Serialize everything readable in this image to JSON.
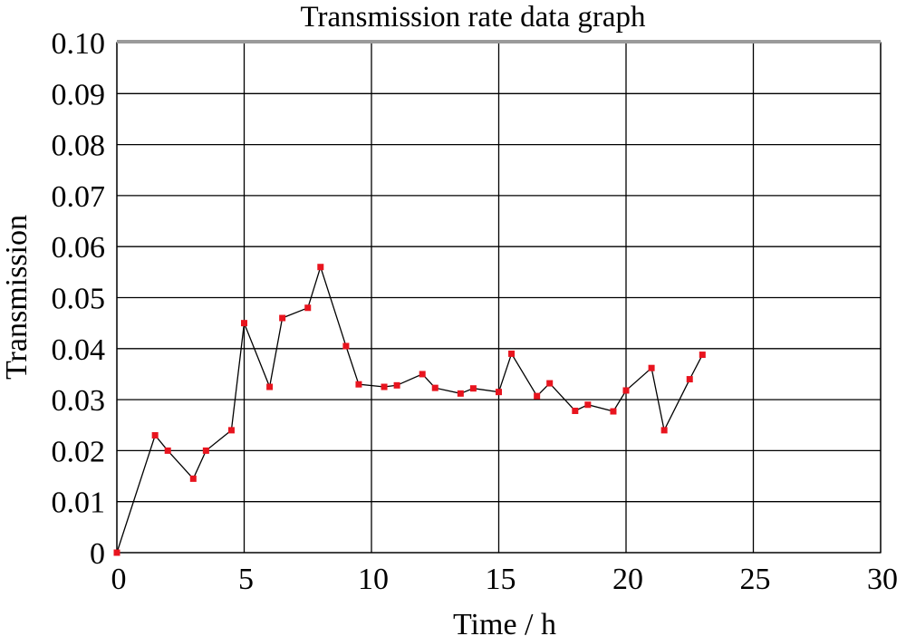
{
  "chart_data": {
    "type": "line",
    "title": "Transmission rate data graph",
    "xlabel": "Time / h",
    "ylabel": "Transmission",
    "xlim": [
      0,
      30
    ],
    "ylim": [
      0,
      0.1
    ],
    "x_ticks": [
      0,
      5,
      10,
      15,
      20,
      25,
      30
    ],
    "y_ticks": [
      0,
      0.01,
      0.02,
      0.03,
      0.04,
      0.05,
      0.06,
      0.07,
      0.08,
      0.09,
      0.1
    ],
    "x_tick_labels": [
      "0",
      "5",
      "10",
      "15",
      "20",
      "25",
      "30"
    ],
    "y_tick_labels": [
      "0",
      "0.01",
      "0.02",
      "0.03",
      "0.04",
      "0.05",
      "0.06",
      "0.07",
      "0.08",
      "0.09",
      "0.10"
    ],
    "grid": true,
    "series_color": "#000000",
    "marker_color": "#e8141e",
    "series": [
      {
        "x": [
          0,
          1.5,
          2,
          3,
          3.5,
          4.5,
          5,
          6,
          6.5,
          7.5,
          8,
          9,
          9.5,
          10.5,
          11,
          12,
          12.5,
          13.5,
          14,
          15,
          15.5,
          16.5,
          17,
          18,
          18.5,
          19.5,
          20,
          21,
          21.5,
          22.5,
          23
        ],
        "values": [
          0,
          0.023,
          0.02,
          0.0145,
          0.02,
          0.024,
          0.045,
          0.0325,
          0.046,
          0.048,
          0.056,
          0.0405,
          0.033,
          0.0325,
          0.0328,
          0.035,
          0.0323,
          0.0312,
          0.0322,
          0.0315,
          0.039,
          0.0307,
          0.0332,
          0.0278,
          0.029,
          0.0277,
          0.0318,
          0.0362,
          0.024,
          0.034,
          0.0388
        ]
      }
    ]
  }
}
